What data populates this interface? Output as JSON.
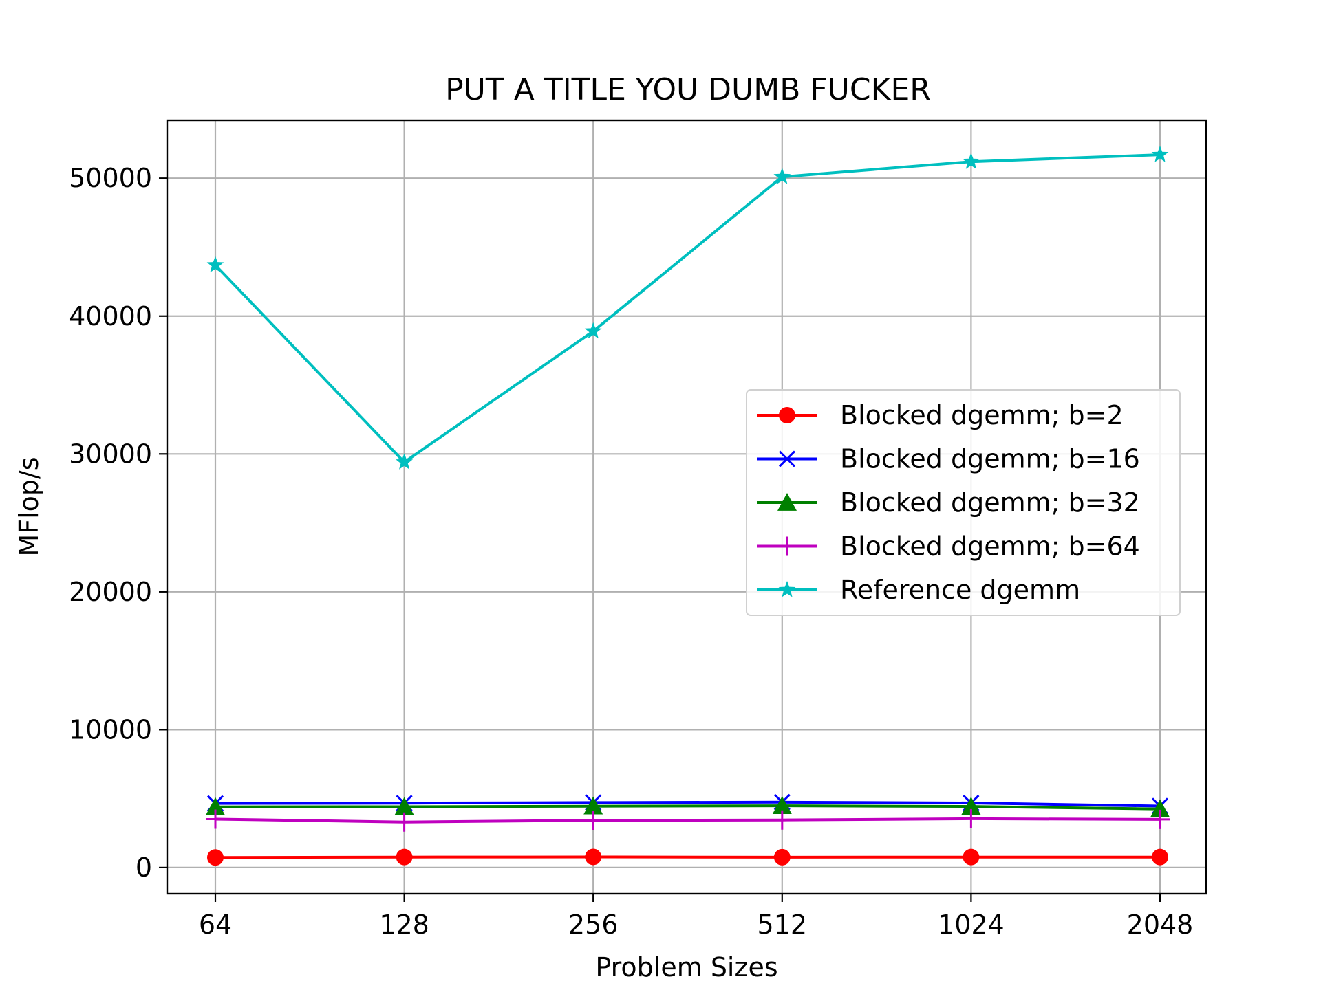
{
  "chart_data": {
    "type": "line",
    "title": "PUT A TITLE YOU DUMB FUCKER",
    "xlabel": "Problem Sizes",
    "ylabel": "MFlop/s",
    "categories": [
      "64",
      "128",
      "256",
      "512",
      "1024",
      "2048"
    ],
    "ylim": [
      -1900,
      54200
    ],
    "yticks": [
      0,
      10000,
      20000,
      30000,
      40000,
      50000
    ],
    "grid": true,
    "legend_position": "center-right",
    "series": [
      {
        "name": "Blocked dgemm; b=2",
        "color": "#ff0000",
        "marker": "circle",
        "values": [
          730,
          760,
          770,
          750,
          760,
          760
        ]
      },
      {
        "name": "Blocked dgemm; b=16",
        "color": "#0000ff",
        "marker": "x",
        "values": [
          4650,
          4670,
          4710,
          4740,
          4680,
          4460
        ]
      },
      {
        "name": "Blocked dgemm; b=32",
        "color": "#008000",
        "marker": "triangle",
        "values": [
          4400,
          4410,
          4450,
          4480,
          4430,
          4250
        ]
      },
      {
        "name": "Blocked dgemm; b=64",
        "color": "#bf00bf",
        "marker": "plus",
        "values": [
          3510,
          3300,
          3420,
          3450,
          3540,
          3490
        ]
      },
      {
        "name": "Reference dgemm",
        "color": "#00bfbf",
        "marker": "star",
        "values": [
          43700,
          29400,
          38900,
          50100,
          51200,
          51700
        ]
      }
    ]
  }
}
